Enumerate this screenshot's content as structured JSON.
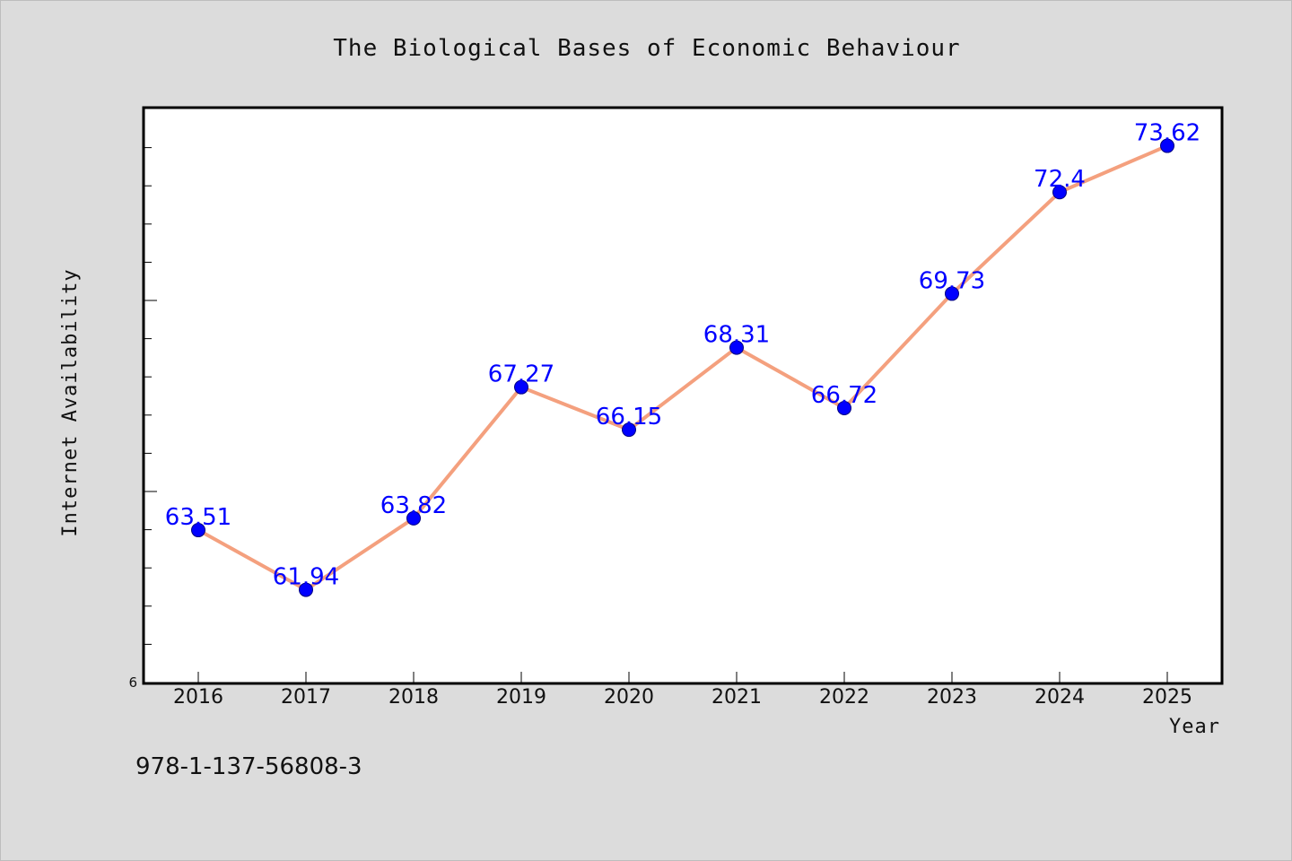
{
  "chart_data": {
    "type": "line",
    "title": "The Biological Bases of Economic Behaviour",
    "xlabel": "Year",
    "ylabel": "Internet Availability",
    "categories": [
      "2016",
      "2017",
      "2018",
      "2019",
      "2020",
      "2021",
      "2022",
      "2023",
      "2024",
      "2025"
    ],
    "series": [
      {
        "values": [
          63.51,
          61.94,
          63.82,
          67.27,
          66.15,
          68.31,
          66.72,
          69.73,
          72.4,
          73.62
        ],
        "labels": [
          "63.51",
          "61.94",
          "63.82",
          "67.27",
          "66.15",
          "68.31",
          "66.72",
          "69.73",
          "72.4",
          "73.62"
        ]
      }
    ],
    "ytick_labels": [
      "6"
    ],
    "ylim": [
      59.5,
      74.6
    ],
    "grid": false,
    "legend": "none",
    "colors": {
      "line": "#f4a07e",
      "marker": "#0000ff",
      "data_label": "#0000ff",
      "background": "#dcdcdc",
      "plot_background": "#ffffff"
    }
  },
  "footnote": "978-1-137-56808-3"
}
